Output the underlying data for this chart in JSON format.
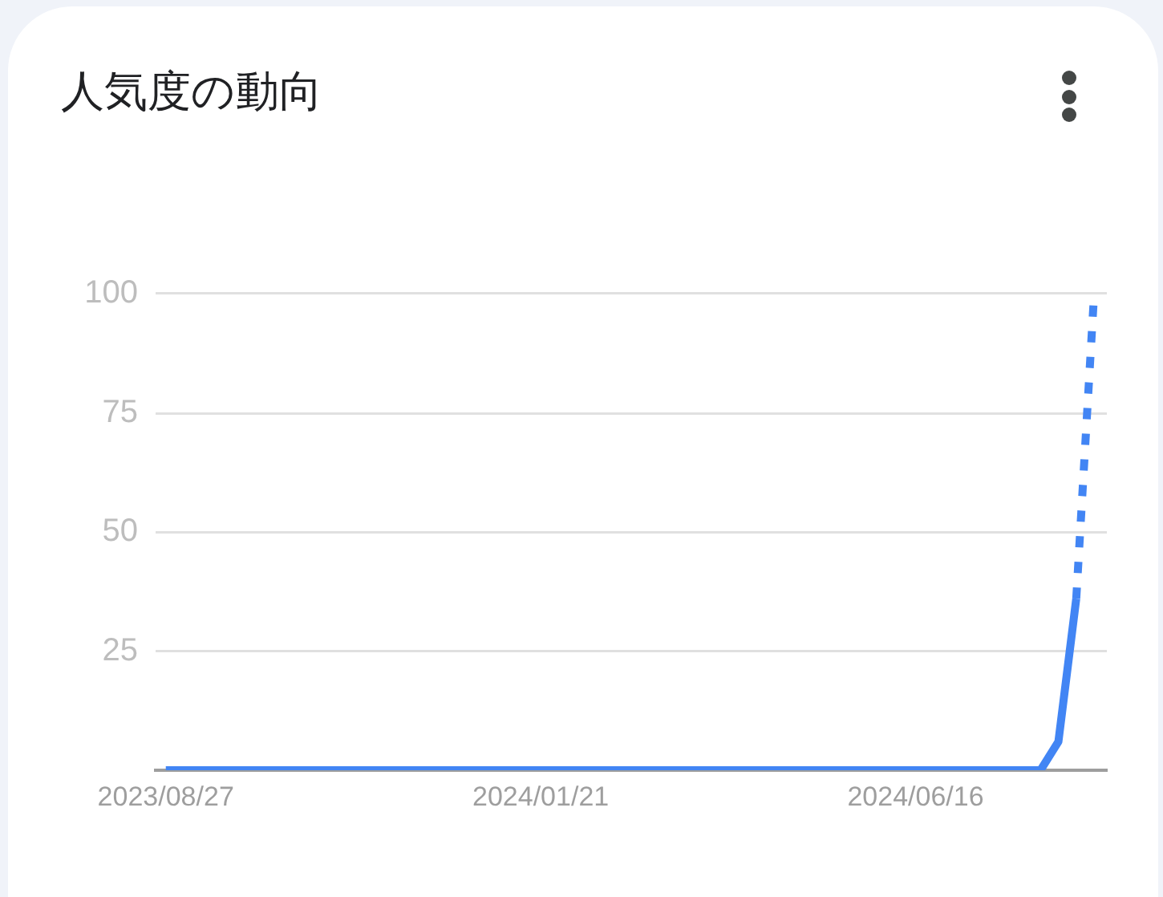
{
  "chart_data": {
    "type": "line",
    "title": "人気度の動向",
    "series": [
      {
        "color": "#4285f4",
        "x": [
          "2023-08-27",
          "2023-09-03",
          "2023-09-10",
          "2023-09-17",
          "2023-09-24",
          "2023-10-01",
          "2023-10-08",
          "2023-10-15",
          "2023-10-22",
          "2023-10-29",
          "2023-11-05",
          "2023-11-12",
          "2023-11-19",
          "2023-11-26",
          "2023-12-03",
          "2023-12-10",
          "2023-12-17",
          "2023-12-24",
          "2023-12-31",
          "2024-01-07",
          "2024-01-14",
          "2024-01-21",
          "2024-01-28",
          "2024-02-04",
          "2024-02-11",
          "2024-02-18",
          "2024-02-25",
          "2024-03-03",
          "2024-03-10",
          "2024-03-17",
          "2024-03-24",
          "2024-03-31",
          "2024-04-07",
          "2024-04-14",
          "2024-04-21",
          "2024-04-28",
          "2024-05-05",
          "2024-05-12",
          "2024-05-19",
          "2024-05-26",
          "2024-06-02",
          "2024-06-09",
          "2024-06-16",
          "2024-06-23",
          "2024-06-30",
          "2024-07-07",
          "2024-07-14",
          "2024-07-21",
          "2024-07-28",
          "2024-08-04",
          "2024-08-11",
          "2024-08-18"
        ],
        "values": [
          0,
          0,
          0,
          0,
          0,
          0,
          0,
          0,
          0,
          0,
          0,
          0,
          0,
          0,
          0,
          0,
          0,
          0,
          0,
          0,
          0,
          0,
          0,
          0,
          0,
          0,
          0,
          0,
          0,
          0,
          0,
          0,
          0,
          0,
          0,
          0,
          0,
          0,
          0,
          0,
          0,
          0,
          0,
          0,
          0,
          0,
          0,
          0,
          0,
          0,
          6,
          36
        ]
      },
      {
        "color": "#4285f4",
        "line_style": "dotted",
        "x": [
          "2024-08-18",
          "2024-08-25"
        ],
        "values": [
          36,
          100
        ]
      }
    ],
    "xlim": [
      "2023-08-23",
      "2024-08-30"
    ],
    "xticks": [
      {
        "value": "2023-08-27",
        "label": "2023/08/27"
      },
      {
        "value": "2024-01-21",
        "label": "2024/01/21"
      },
      {
        "value": "2024-06-16",
        "label": "2024/06/16"
      }
    ],
    "ylim": [
      0,
      100
    ],
    "yticks": [
      25,
      50,
      75,
      100
    ],
    "grid": "y"
  }
}
